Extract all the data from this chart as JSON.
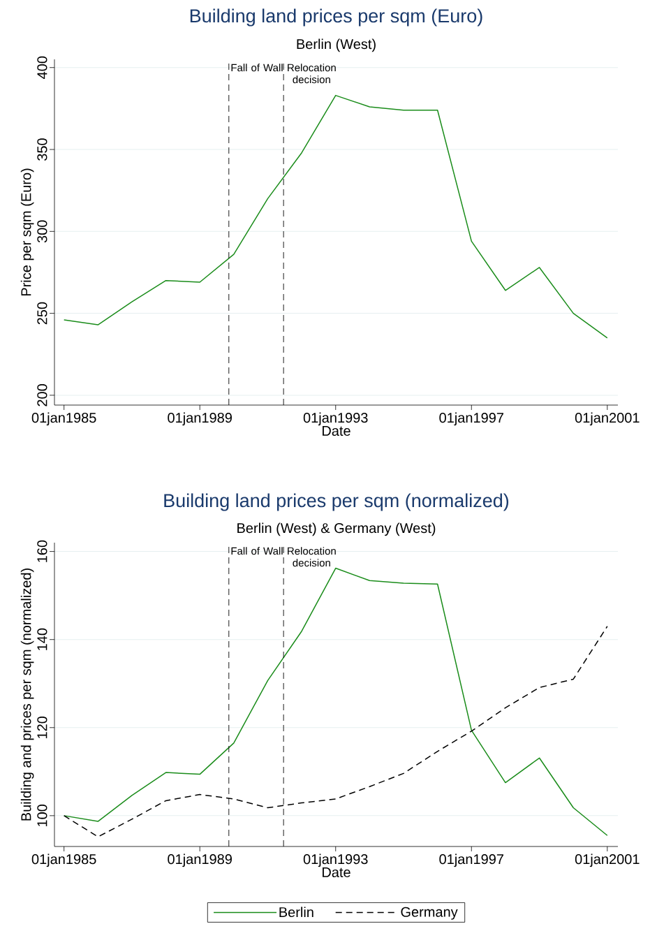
{
  "chart_data": [
    {
      "type": "line",
      "title": "Building land prices per sqm (Euro)",
      "subtitle": "Berlin (West)",
      "xlabel": "Date",
      "ylabel": "Price per sqm (Euro)",
      "x": [
        "1985-01-01",
        "1986-01-01",
        "1987-01-01",
        "1988-01-01",
        "1989-01-01",
        "1990-01-01",
        "1991-01-01",
        "1992-01-01",
        "1993-01-01",
        "1994-01-01",
        "1995-01-01",
        "1996-01-01",
        "1997-01-01",
        "1998-01-01",
        "1999-01-01",
        "2000-01-01",
        "2001-01-01"
      ],
      "series": [
        {
          "color": "#1a8c1a",
          "line_style": "solid",
          "values": [
            246,
            243,
            257,
            270,
            269,
            286,
            320,
            348,
            383,
            376,
            374,
            374,
            294,
            264,
            278,
            250,
            235
          ]
        }
      ],
      "xlim": [
        "1984-09-20",
        "2001-04-25"
      ],
      "ylim": [
        194,
        405
      ],
      "xticks": [
        {
          "value": "1985-01-01",
          "label": "01jan1985"
        },
        {
          "value": "1989-01-01",
          "label": "01jan1989"
        },
        {
          "value": "1993-01-01",
          "label": "01jan1993"
        },
        {
          "value": "1997-01-01",
          "label": "01jan1997"
        },
        {
          "value": "2001-01-01",
          "label": "01jan2001"
        }
      ],
      "yticks": [
        200,
        250,
        300,
        350,
        400
      ],
      "grid": "y",
      "ref_lines": [
        {
          "axis": "x",
          "value": "1989-11-09",
          "label": "Fall of Wall",
          "color": "#000000",
          "line_style": "dashed"
        },
        {
          "axis": "x",
          "value": "1991-06-20",
          "label": "Relocation decision",
          "color": "#000000",
          "line_style": "dashed"
        }
      ]
    },
    {
      "type": "line",
      "title": "Building land prices per sqm (normalized)",
      "subtitle": "Berlin (West) & Germany (West)",
      "xlabel": "Date",
      "ylabel": "Building and prices per sqm (normalized)",
      "x": [
        "1985-01-01",
        "1986-01-01",
        "1987-01-01",
        "1988-01-01",
        "1989-01-01",
        "1990-01-01",
        "1991-01-01",
        "1992-01-01",
        "1993-01-01",
        "1994-01-01",
        "1995-01-01",
        "1996-01-01",
        "1997-01-01",
        "1998-01-01",
        "1999-01-01",
        "2000-01-01",
        "2001-01-01"
      ],
      "series": [
        {
          "name": "Berlin",
          "color": "#1a8c1a",
          "line_style": "solid",
          "values": [
            100,
            98.7,
            104.6,
            109.8,
            109.4,
            116.5,
            130.7,
            141.9,
            156.2,
            153.4,
            152.8,
            152.6,
            119.4,
            107.5,
            113.1,
            101.8,
            95.5
          ]
        },
        {
          "name": "Germany",
          "color": "#000000",
          "line_style": "dashed",
          "values": [
            100,
            95.2,
            99.2,
            103.4,
            104.8,
            103.8,
            101.8,
            102.9,
            103.8,
            106.6,
            109.6,
            114.6,
            119.2,
            124.5,
            129.1,
            131,
            143
          ]
        }
      ],
      "xlim": [
        "1984-09-20",
        "2001-04-25"
      ],
      "ylim": [
        93,
        162
      ],
      "xticks": [
        {
          "value": "1985-01-01",
          "label": "01jan1985"
        },
        {
          "value": "1989-01-01",
          "label": "01jan1989"
        },
        {
          "value": "1993-01-01",
          "label": "01jan1993"
        },
        {
          "value": "1997-01-01",
          "label": "01jan1997"
        },
        {
          "value": "2001-01-01",
          "label": "01jan2001"
        }
      ],
      "yticks": [
        100,
        120,
        140,
        160
      ],
      "grid": "y",
      "legend": "bottom",
      "ref_lines": [
        {
          "axis": "x",
          "value": "1989-11-09",
          "label": "Fall of Wall",
          "color": "#000000",
          "line_style": "dashed"
        },
        {
          "axis": "x",
          "value": "1991-06-20",
          "label": "Relocation decision",
          "color": "#000000",
          "line_style": "dashed"
        }
      ]
    }
  ]
}
